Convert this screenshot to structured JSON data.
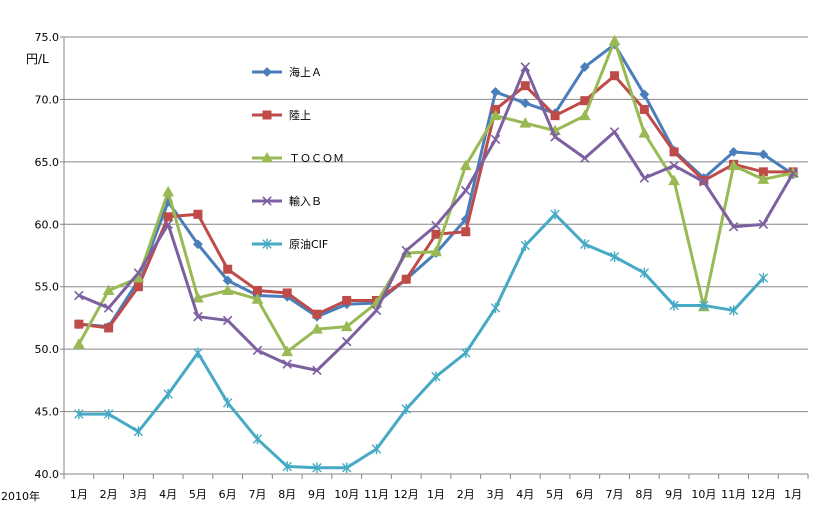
{
  "chart_data": {
    "type": "line",
    "ylabel": "円/L",
    "year_label": "2010年",
    "ylim": [
      40.0,
      75.0
    ],
    "yticks": [
      "40.0",
      "45.0",
      "50.0",
      "55.0",
      "60.0",
      "65.0",
      "70.0",
      "75.0"
    ],
    "categories": [
      "1月",
      "2月",
      "3月",
      "4月",
      "5月",
      "6月",
      "7月",
      "8月",
      "9月",
      "10月",
      "11月",
      "12月",
      "1月",
      "2月",
      "3月",
      "4月",
      "5月",
      "6月",
      "7月",
      "8月",
      "9月",
      "10月",
      "11月",
      "12月",
      "1月"
    ],
    "grid": "horizontal",
    "legend_position": "inside-top-left",
    "series": [
      {
        "name": "海上Ａ",
        "color": "#4a7ebb",
        "marker": "diamond",
        "values": [
          52.0,
          51.8,
          55.5,
          61.8,
          58.4,
          55.5,
          54.3,
          54.2,
          52.6,
          53.6,
          53.7,
          55.6,
          57.7,
          60.4,
          70.6,
          69.7,
          68.9,
          72.6,
          74.4,
          70.4,
          65.9,
          63.7,
          65.8,
          65.6,
          64.0
        ]
      },
      {
        "name": "陸上",
        "color": "#be4b48",
        "marker": "square",
        "values": [
          52.0,
          51.7,
          55.0,
          60.6,
          60.8,
          56.4,
          54.7,
          54.5,
          52.8,
          53.9,
          53.9,
          55.6,
          59.2,
          59.4,
          69.2,
          71.1,
          68.7,
          69.9,
          71.9,
          69.2,
          65.8,
          63.5,
          64.8,
          64.2,
          64.2
        ]
      },
      {
        "name": "ＴＯＣＯＭ",
        "color": "#98b954",
        "marker": "triangle",
        "values": [
          50.4,
          54.7,
          55.7,
          62.6,
          54.1,
          54.7,
          54.0,
          49.8,
          51.6,
          51.8,
          53.7,
          57.7,
          57.8,
          64.7,
          68.7,
          68.1,
          67.5,
          68.7,
          74.7,
          67.3,
          63.5,
          53.4,
          64.7,
          63.6,
          64.1
        ]
      },
      {
        "name": "輸入Ｂ",
        "color": "#7d60a0",
        "marker": "x",
        "values": [
          54.3,
          53.3,
          56.1,
          60.0,
          52.6,
          52.3,
          49.9,
          48.8,
          48.3,
          50.6,
          53.1,
          57.9,
          59.9,
          62.7,
          66.8,
          72.6,
          67.0,
          65.3,
          67.4,
          63.7,
          64.7,
          63.4,
          59.8,
          60.0,
          64.1
        ]
      },
      {
        "name": "原油CIF",
        "color": "#46aac5",
        "marker": "star",
        "values": [
          44.8,
          44.8,
          43.4,
          46.4,
          49.7,
          45.7,
          42.8,
          40.6,
          40.5,
          40.5,
          42.0,
          45.2,
          47.8,
          49.7,
          53.3,
          58.3,
          60.8,
          58.4,
          57.4,
          56.1,
          53.5,
          53.5,
          53.1,
          55.7,
          null
        ]
      }
    ]
  }
}
